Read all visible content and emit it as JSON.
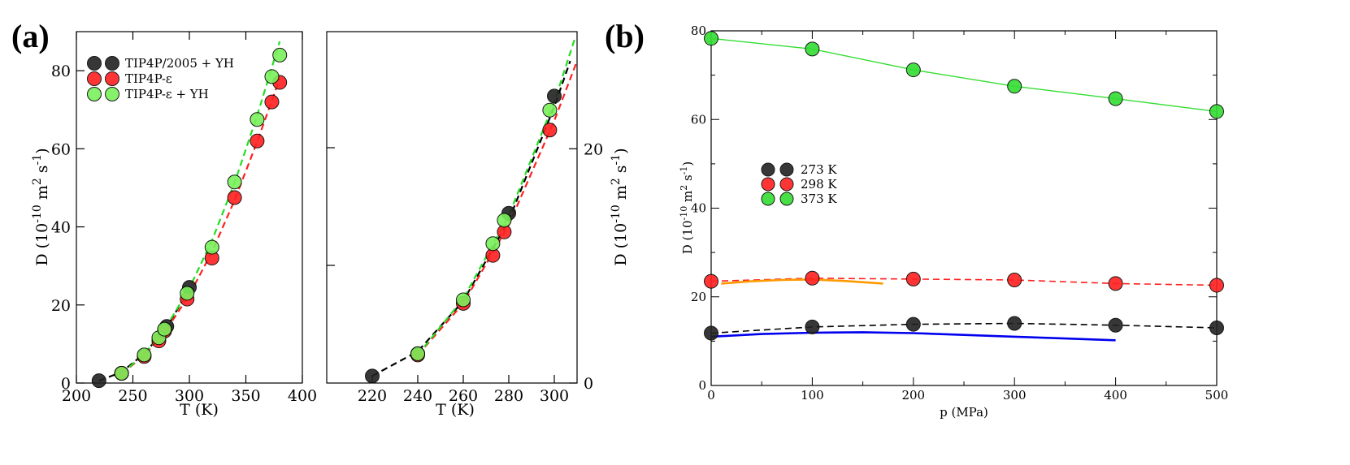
{
  "labels": {
    "panel_a": "(a)",
    "panel_b": "(b)"
  },
  "chart_data": [
    {
      "type": "scatter",
      "panel": "(a)",
      "xlabel": "T (K)",
      "ylabel": "D (10^-10 m^2 s^-1)",
      "xlim": [
        200,
        400
      ],
      "ylim": [
        0,
        90
      ],
      "xticks": [
        200,
        250,
        300,
        350,
        400
      ],
      "yticks": [
        0,
        20,
        40,
        60,
        80
      ],
      "legend_position": "top-left",
      "series": [
        {
          "name": "TIP4P/2005 + YH",
          "color": "#222222",
          "dashed_color": "#000000",
          "x": [
            220,
            240,
            280,
            300
          ],
          "y": [
            0.6,
            2.5,
            14.5,
            24.5
          ]
        },
        {
          "name": "TIP4P-ε",
          "color": "#ff2020",
          "dashed_color": "#ff2020",
          "x": [
            240,
            260,
            273,
            278,
            298,
            320,
            340,
            360,
            373,
            380
          ],
          "y": [
            2.5,
            6.8,
            10.8,
            13.3,
            21.5,
            32,
            47.5,
            62,
            72,
            77
          ]
        },
        {
          "name": "TIP4P-ε + YH",
          "color": "#7af05a",
          "dashed_color": "#22dd22",
          "x": [
            240,
            260,
            273,
            278,
            298,
            320,
            340,
            360,
            373,
            380
          ],
          "y": [
            2.5,
            7.2,
            11.6,
            13.8,
            23,
            34.8,
            51.5,
            67.5,
            78.5,
            84
          ]
        }
      ]
    },
    {
      "type": "scatter",
      "panel": "(a) inset",
      "xlabel": "T (K)",
      "ylabel": "D (10^-10 m^2 s^-1)",
      "xlim": [
        200,
        310
      ],
      "ylim": [
        0,
        30
      ],
      "xticks": [
        220,
        240,
        260,
        280,
        300
      ],
      "yticks": [
        0,
        20
      ],
      "series": [
        {
          "name": "TIP4P/2005 + YH",
          "color": "#222222",
          "x": [
            220,
            240,
            280,
            300
          ],
          "y": [
            0.6,
            2.5,
            14.5,
            24.5
          ]
        },
        {
          "name": "TIP4P-ε",
          "color": "#ff2020",
          "x": [
            240,
            260,
            273,
            278,
            298
          ],
          "y": [
            2.4,
            6.8,
            10.9,
            12.9,
            21.6
          ]
        },
        {
          "name": "TIP4P-ε + YH",
          "color": "#7af05a",
          "x": [
            240,
            260,
            273,
            278,
            298
          ],
          "y": [
            2.5,
            7.1,
            11.9,
            13.9,
            23.3
          ]
        }
      ]
    },
    {
      "type": "line",
      "panel": "(b)",
      "xlabel": "p (MPa)",
      "ylabel": "D (10^-10 m^2 s^-1)",
      "xlim": [
        0,
        500
      ],
      "ylim": [
        0,
        80
      ],
      "xticks": [
        0,
        100,
        200,
        300,
        400,
        500
      ],
      "yticks": [
        0,
        20,
        40,
        60,
        80
      ],
      "legend_position": "center-left",
      "series": [
        {
          "name": "273 K",
          "color": "#222222",
          "x": [
            0,
            100,
            200,
            300,
            400,
            500
          ],
          "y": [
            11.8,
            13.2,
            13.8,
            14,
            13.6,
            13
          ]
        },
        {
          "name": "298 K",
          "color": "#ff2020",
          "x": [
            0,
            100,
            200,
            300,
            400,
            500
          ],
          "y": [
            23.5,
            24.2,
            24,
            23.8,
            23,
            22.6
          ]
        },
        {
          "name": "373 K",
          "color": "#33dd33",
          "x": [
            0,
            100,
            200,
            300,
            400,
            500
          ],
          "y": [
            78.3,
            75.9,
            71.2,
            67.5,
            64.7,
            61.8
          ]
        }
      ],
      "curves": [
        {
          "color": "#0000ee",
          "x": [
            0,
            50,
            100,
            150,
            200,
            250,
            300,
            350,
            400
          ],
          "y": [
            11,
            11.6,
            11.9,
            12,
            11.8,
            11.4,
            11,
            10.6,
            10.2
          ]
        },
        {
          "color": "#ff9900",
          "x": [
            10,
            40,
            70,
            100,
            130,
            170
          ],
          "y": [
            23,
            23.5,
            23.8,
            23.9,
            23.6,
            23
          ]
        }
      ]
    }
  ]
}
